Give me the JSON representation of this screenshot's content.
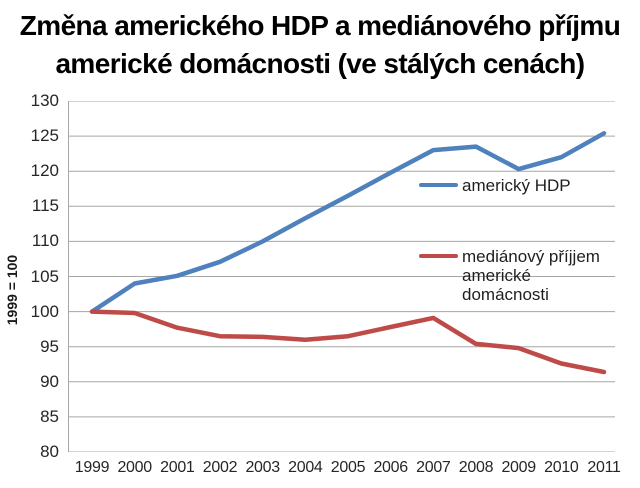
{
  "title": {
    "line1": "Změna amerického HDP a mediánového příjmu",
    "line2": "americké domácnosti (ve stálých cenách)"
  },
  "y_axis_title": "1999 = 100",
  "colors": {
    "gdp_line": "#4F81BD",
    "income_line": "#BE4B48",
    "gridline": "#A6A6A6",
    "axis_text": "#262626",
    "title_text": "#000000",
    "background": "#FFFFFF"
  },
  "chart_data": {
    "type": "line",
    "title": "Změna amerického HDP a mediánového příjmu americké domácnosti (ve stálých cenách)",
    "xlabel": "",
    "ylabel": "1999 = 100",
    "categories": [
      "1999",
      "2000",
      "2001",
      "2002",
      "2003",
      "2004",
      "2005",
      "2006",
      "2007",
      "2008",
      "2009",
      "2010",
      "2011"
    ],
    "ylim": [
      80,
      130
    ],
    "yticks": [
      80,
      85,
      90,
      95,
      100,
      105,
      110,
      115,
      120,
      125,
      130
    ],
    "grid": true,
    "legend_position": "inside-right",
    "series": [
      {
        "name": "americký HDP",
        "color": "#4F81BD",
        "values": [
          100,
          104,
          105.1,
          107.1,
          110,
          113.3,
          116.5,
          119.8,
          123,
          123.5,
          120.3,
          122,
          125.4
        ]
      },
      {
        "name": "mediánový příjjem americké domácnosti",
        "color": "#BE4B48",
        "values": [
          100,
          99.8,
          97.7,
          96.5,
          96.4,
          96,
          96.5,
          97.8,
          99.1,
          95.4,
          94.8,
          92.6,
          91.4
        ]
      }
    ]
  }
}
